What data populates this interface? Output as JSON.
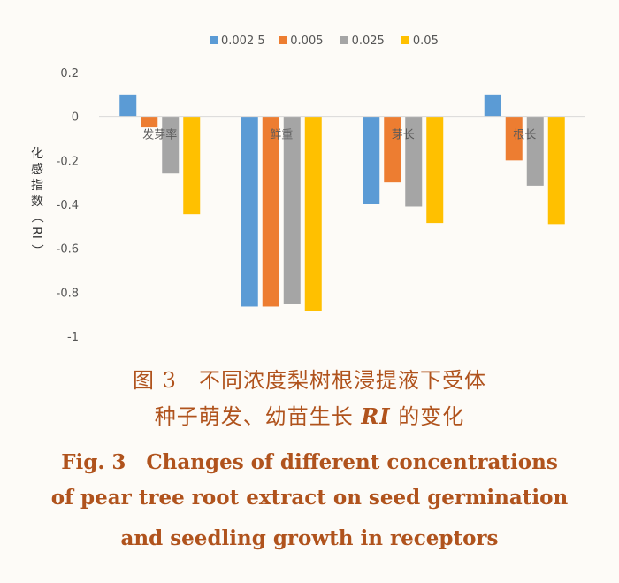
{
  "chart_data": {
    "type": "bar",
    "categories": [
      "发芽率",
      "鲜重",
      "芽长",
      "根长"
    ],
    "series": [
      {
        "name": "0.002 5",
        "color": "#5b9bd5",
        "values": [
          0.1,
          -0.865,
          -0.4,
          0.1
        ]
      },
      {
        "name": "0.005",
        "color": "#ed7d31",
        "values": [
          -0.05,
          -0.865,
          -0.3,
          -0.2
        ]
      },
      {
        "name": "0.025",
        "color": "#a5a5a5",
        "values": [
          -0.26,
          -0.855,
          -0.41,
          -0.315
        ]
      },
      {
        "name": "0.05",
        "color": "#ffc000",
        "values": [
          -0.445,
          -0.885,
          -0.485,
          -0.49
        ]
      }
    ],
    "ylabel_chars": [
      "化",
      "感",
      "指",
      "数",
      "（",
      "RI",
      "）"
    ],
    "ylim": [
      -1,
      0.2
    ],
    "yticks": [
      "0.2",
      "0",
      "-0.2",
      "-0.4",
      "-0.6",
      "-0.8",
      "-1"
    ],
    "legend_position": "top",
    "grid": false
  },
  "caption": {
    "cn_line1": "图 3　不同浓度梨树根浸提液下受体",
    "cn_line2_pre": "种子萌发、幼苗生长 ",
    "cn_line2_ri": "RI",
    "cn_line2_post": " 的变化",
    "en_line1": "Fig. 3　Changes of different concentrations",
    "en_line2": "of pear tree root extract on seed germination",
    "en_line3": "and seedling growth in receptors"
  }
}
